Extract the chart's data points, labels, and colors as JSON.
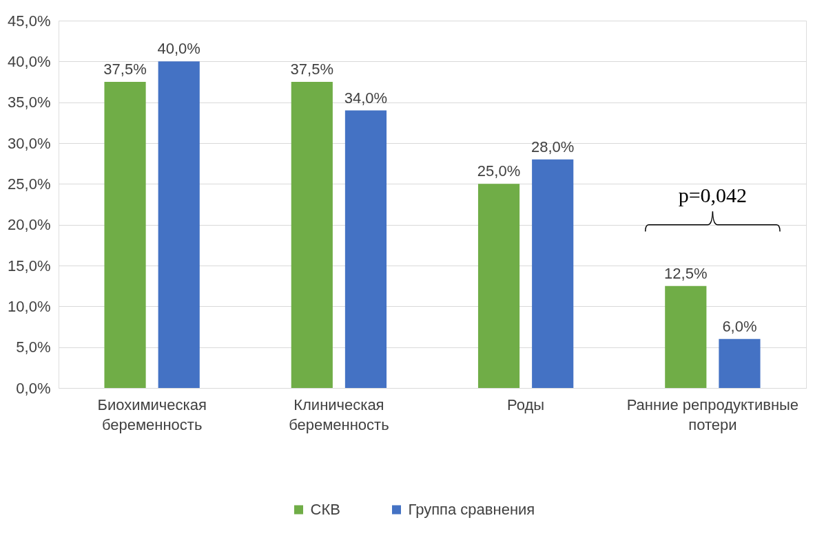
{
  "chart_data": {
    "type": "bar",
    "categories": [
      "Биохимическая беременность",
      "Клиническая беременность",
      "Роды",
      "Ранние репродуктивные потери"
    ],
    "series": [
      {
        "name": "СКВ",
        "color": "#70ad47",
        "values": [
          37.5,
          37.5,
          25.0,
          12.5
        ],
        "value_labels": [
          "37,5%",
          "37,5%",
          "25,0%",
          "12,5%"
        ]
      },
      {
        "name": "Группа сравнения",
        "color": "#4472c4",
        "values": [
          40.0,
          34.0,
          28.0,
          6.0
        ],
        "value_labels": [
          "40,0%",
          "34,0%",
          "28,0%",
          "6,0%"
        ]
      }
    ],
    "ylim": [
      0,
      45
    ],
    "yticks": [
      {
        "value": 0,
        "label": "0,0%"
      },
      {
        "value": 5,
        "label": "5,0%"
      },
      {
        "value": 10,
        "label": "10,0%"
      },
      {
        "value": 15,
        "label": "15,0%"
      },
      {
        "value": 20,
        "label": "20,0%"
      },
      {
        "value": 25,
        "label": "25,0%"
      },
      {
        "value": 30,
        "label": "30,0%"
      },
      {
        "value": 35,
        "label": "35,0%"
      },
      {
        "value": 40,
        "label": "40,0%"
      },
      {
        "value": 45,
        "label": "45,0%"
      }
    ],
    "grid": "y",
    "legend": "bottom",
    "annotations": [
      "p=0,042"
    ]
  }
}
